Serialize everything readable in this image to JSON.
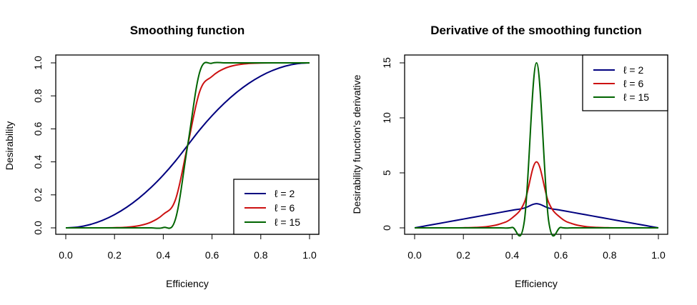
{
  "chart_data": [
    {
      "type": "line",
      "title": "Smoothing function",
      "xlabel": "Efficiency",
      "ylabel": "Desirability",
      "xlim": [
        0,
        1
      ],
      "ylim": [
        0,
        1
      ],
      "xticks": [
        "0.0",
        "0.2",
        "0.4",
        "0.6",
        "0.8",
        "1.0"
      ],
      "yticks": [
        "0.0",
        "0.2",
        "0.4",
        "0.6",
        "0.8",
        "1.0"
      ],
      "grid": false,
      "legend_position": "bottom-right",
      "x": [
        0.0,
        0.05,
        0.1,
        0.15,
        0.2,
        0.25,
        0.3,
        0.35,
        0.4,
        0.45,
        0.5,
        0.55,
        0.6,
        0.65,
        0.7,
        0.75,
        0.8,
        0.85,
        0.9,
        0.95,
        1.0
      ],
      "series": [
        {
          "name": "ℓ = 2",
          "color": "#00007f",
          "values": [
            0.0,
            0.005,
            0.02,
            0.045,
            0.08,
            0.125,
            0.18,
            0.245,
            0.32,
            0.405,
            0.5,
            0.595,
            0.68,
            0.755,
            0.82,
            0.875,
            0.92,
            0.955,
            0.98,
            0.995,
            1.0
          ]
        },
        {
          "name": "ℓ = 6",
          "color": "#cc1111",
          "values": [
            0.0,
            0.0,
            0.0,
            0.0,
            0.001,
            0.004,
            0.013,
            0.035,
            0.082,
            0.171,
            0.5,
            0.829,
            0.918,
            0.965,
            0.987,
            0.996,
            0.999,
            1.0,
            1.0,
            1.0,
            1.0
          ]
        },
        {
          "name": "ℓ = 15",
          "color": "#006400",
          "values": [
            0.0,
            0.0,
            0.0,
            0.0,
            0.0,
            0.0,
            0.0,
            0.0,
            0.002,
            0.053,
            0.5,
            0.947,
            0.998,
            1.0,
            1.0,
            1.0,
            1.0,
            1.0,
            1.0,
            1.0,
            1.0
          ]
        }
      ]
    },
    {
      "type": "line",
      "title": "Derivative of the smoothing function",
      "xlabel": "Efficiency",
      "ylabel": "Desirability function's derivative",
      "xlim": [
        0,
        1
      ],
      "ylim": [
        0,
        15
      ],
      "xticks": [
        "0.0",
        "0.2",
        "0.4",
        "0.6",
        "0.8",
        "1.0"
      ],
      "yticks": [
        "0",
        "5",
        "10",
        "15"
      ],
      "grid": false,
      "legend_position": "top-right",
      "x": [
        0.0,
        0.05,
        0.1,
        0.15,
        0.2,
        0.25,
        0.3,
        0.35,
        0.4,
        0.45,
        0.5,
        0.55,
        0.6,
        0.65,
        0.7,
        0.75,
        0.8,
        0.85,
        0.9,
        0.95,
        1.0
      ],
      "series": [
        {
          "name": "ℓ = 2",
          "color": "#00007f",
          "values": [
            0.0,
            0.2,
            0.4,
            0.6,
            0.8,
            1.0,
            1.2,
            1.4,
            1.6,
            1.8,
            2.2,
            1.8,
            1.6,
            1.4,
            1.2,
            1.0,
            0.8,
            0.6,
            0.4,
            0.2,
            0.0
          ]
        },
        {
          "name": "ℓ = 6",
          "color": "#cc1111",
          "values": [
            0.0,
            0.0,
            0.0,
            0.0,
            0.01,
            0.04,
            0.12,
            0.35,
            0.9,
            2.3,
            6.0,
            2.3,
            0.9,
            0.35,
            0.12,
            0.04,
            0.01,
            0.0,
            0.0,
            0.0,
            0.0
          ]
        },
        {
          "name": "ℓ = 15",
          "color": "#006400",
          "values": [
            0.0,
            0.0,
            0.0,
            0.0,
            0.0,
            0.0,
            0.0,
            0.0,
            0.04,
            0.6,
            15.0,
            0.6,
            0.04,
            0.0,
            0.0,
            0.0,
            0.0,
            0.0,
            0.0,
            0.0,
            0.0
          ]
        }
      ]
    }
  ]
}
